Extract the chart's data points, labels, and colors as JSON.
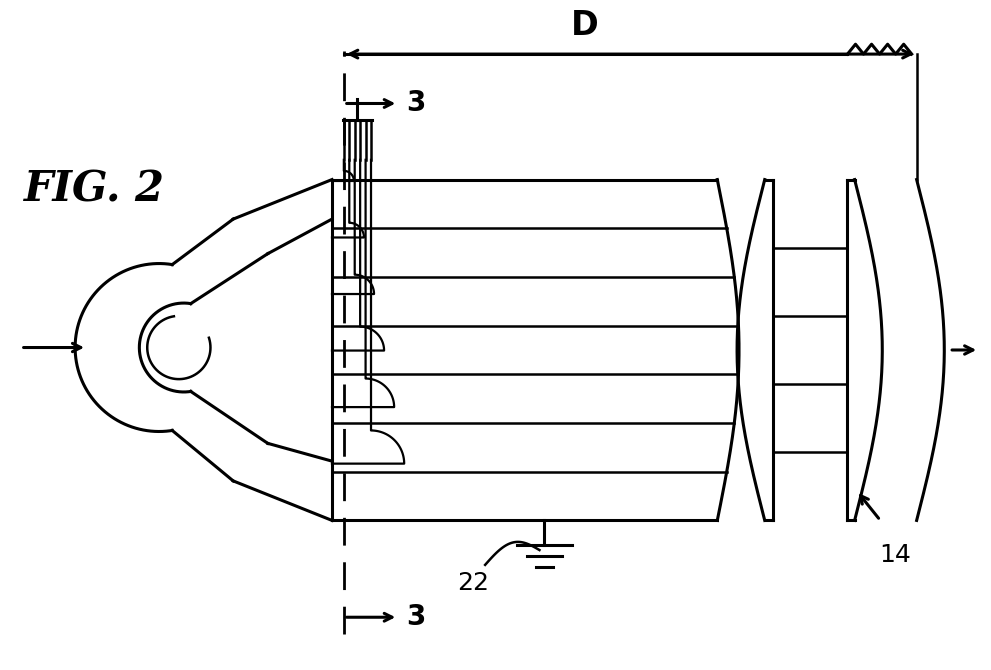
{
  "bg_color": "#ffffff",
  "line_color": "#000000",
  "fig_label": "FIG. 2",
  "label_3": "3",
  "label_22": "22",
  "label_14": "14",
  "label_D": "D",
  "figsize": [
    9.91,
    6.7
  ],
  "dpi": 100
}
